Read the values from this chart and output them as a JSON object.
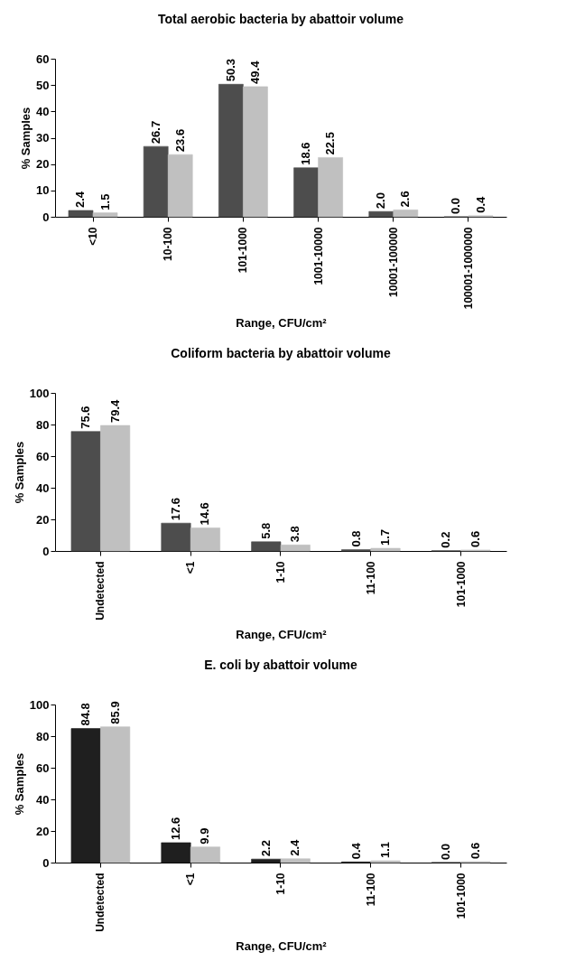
{
  "chart_data": [
    {
      "type": "bar",
      "title": "Total aerobic bacteria by abattoir volume",
      "xlabel": "Range, CFU/cm²",
      "ylabel": "% Samples",
      "categories": [
        "<10",
        "10-100",
        "101-1000",
        "1001-10000",
        "10001-100000",
        "100001-1000000"
      ],
      "series": [
        {
          "color": "#4d4d4d",
          "values": [
            2.4,
            26.7,
            50.3,
            18.6,
            2.0,
            0.0
          ],
          "value_labels": [
            "2.4",
            "26.7",
            "50.3",
            "18.6",
            "2.0",
            "0.0"
          ]
        },
        {
          "color": "#c0c0c0",
          "values": [
            1.5,
            23.6,
            49.4,
            22.5,
            2.6,
            0.4
          ],
          "value_labels": [
            "1.5",
            "23.6",
            "49.4",
            "22.5",
            "2.6",
            "0.4"
          ]
        }
      ],
      "ylim": [
        0,
        60
      ],
      "yticks": [
        0,
        10,
        20,
        30,
        40,
        50,
        60
      ],
      "grid": false
    },
    {
      "type": "bar",
      "title": "Coliform bacteria by abattoir volume",
      "xlabel": "Range, CFU/cm²",
      "ylabel": "% Samples",
      "categories": [
        "Undetected",
        "<1",
        "1-10",
        "11-100",
        "101-1000"
      ],
      "series": [
        {
          "color": "#4d4d4d",
          "values": [
            75.6,
            17.6,
            5.8,
            0.8,
            0.2
          ],
          "value_labels": [
            "75.6",
            "17.6",
            "5.8",
            "0.8",
            "0.2"
          ]
        },
        {
          "color": "#c0c0c0",
          "values": [
            79.4,
            14.6,
            3.8,
            1.7,
            0.6
          ],
          "value_labels": [
            "79.4",
            "14.6",
            "3.8",
            "1.7",
            "0.6"
          ]
        }
      ],
      "ylim": [
        0,
        100
      ],
      "yticks": [
        0,
        20,
        40,
        60,
        80,
        100
      ],
      "grid": false
    },
    {
      "type": "bar",
      "title": "E. coli by abattoir volume",
      "xlabel": "Range, CFU/cm²",
      "ylabel": "% Samples",
      "categories": [
        "Undetected",
        "<1",
        "1-10",
        "11-100",
        "101-1000"
      ],
      "series": [
        {
          "color": "#1f1f1f",
          "values": [
            84.8,
            12.6,
            2.2,
            0.4,
            0.0
          ],
          "value_labels": [
            "84.8",
            "12.6",
            "2.2",
            "0.4",
            "0.0"
          ]
        },
        {
          "color": "#c0c0c0",
          "values": [
            85.9,
            9.9,
            2.4,
            1.1,
            0.6
          ],
          "value_labels": [
            "85.9",
            "9.9",
            "2.4",
            "1.1",
            "0.6"
          ]
        }
      ],
      "ylim": [
        0,
        100
      ],
      "yticks": [
        0,
        20,
        40,
        60,
        80,
        100
      ],
      "grid": false
    }
  ]
}
